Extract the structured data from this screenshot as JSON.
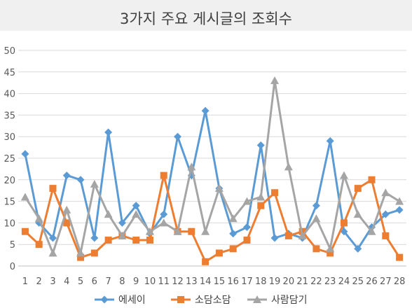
{
  "chart_data": {
    "type": "line",
    "title": "3가지 주요 게시글의 조회수",
    "xlabel": "",
    "ylabel": "",
    "categories": [
      "1",
      "2",
      "3",
      "4",
      "5",
      "6",
      "7",
      "8",
      "9",
      "10",
      "11",
      "12",
      "13",
      "14",
      "15",
      "16",
      "17",
      "18",
      "19",
      "20",
      "21",
      "22",
      "23",
      "24",
      "25",
      "26",
      "27",
      "28"
    ],
    "ylim": [
      0,
      50
    ],
    "yticks": [
      0,
      5,
      10,
      15,
      20,
      25,
      30,
      35,
      40,
      45,
      50
    ],
    "grid": true,
    "legend_position": "bottom",
    "series": [
      {
        "name": "에세이",
        "marker": "diamond",
        "color": "#5B9BD5",
        "values": [
          26,
          10,
          6.5,
          21,
          20,
          6.5,
          31,
          10,
          14,
          7.5,
          12,
          30,
          21,
          36,
          18,
          7.5,
          9,
          28,
          6.5,
          7.5,
          6.5,
          14,
          29,
          8,
          4,
          9,
          12,
          13
        ]
      },
      {
        "name": "소담소담",
        "marker": "square",
        "color": "#ED7D31",
        "values": [
          8,
          5,
          18,
          10,
          2,
          3,
          6,
          7,
          6,
          6,
          21,
          8,
          8,
          1,
          3,
          4,
          6,
          14,
          17,
          7,
          8,
          4,
          3,
          10,
          18,
          20,
          7,
          2
        ]
      },
      {
        "name": "사람담기",
        "marker": "triangle",
        "color": "#A5A5A5",
        "values": [
          16,
          11,
          3,
          13,
          3,
          19,
          12,
          7,
          12,
          8,
          10,
          8,
          23,
          8,
          18,
          11,
          15,
          16,
          43,
          23,
          7,
          11,
          4,
          21,
          12,
          8,
          17,
          15
        ]
      }
    ]
  }
}
